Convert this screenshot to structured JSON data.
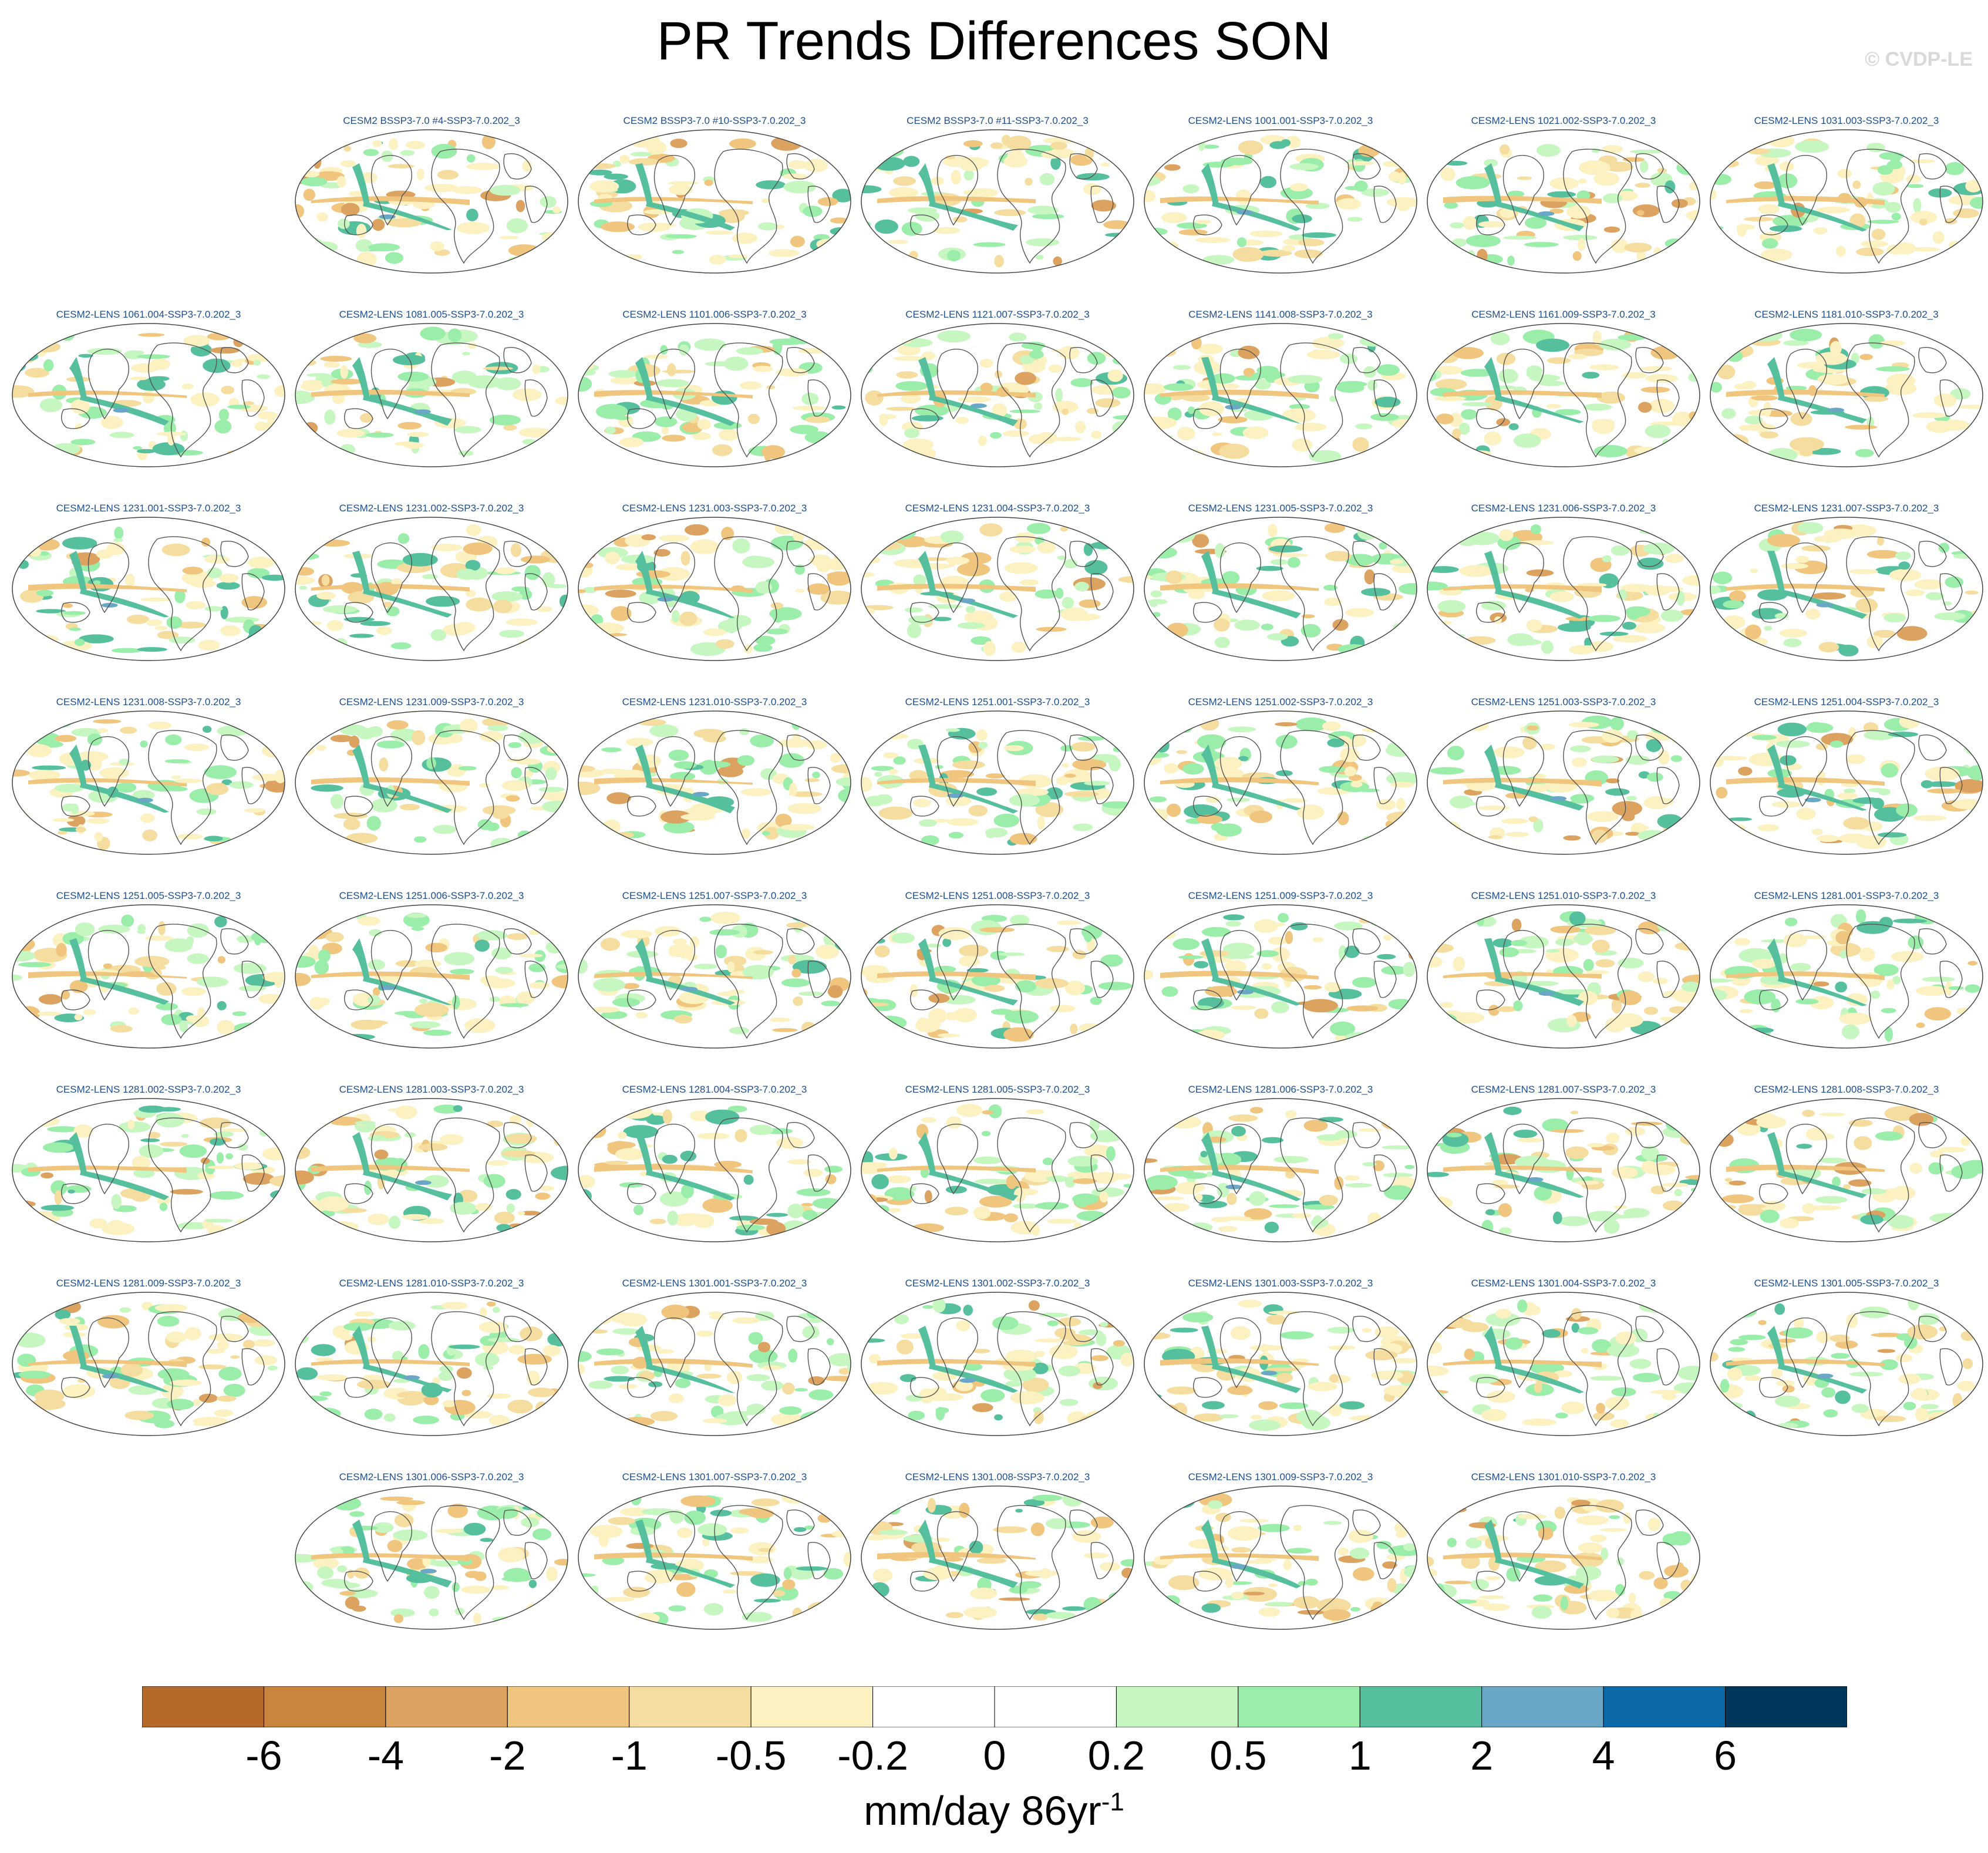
{
  "title": "PR Trends Differences SON",
  "copyright": "© CVDP-LE",
  "panels": [
    "CESM2 BSSP3-7.0 #4-SSP3-7.0.202_3",
    "CESM2 BSSP3-7.0 #10-SSP3-7.0.202_3",
    "CESM2 BSSP3-7.0 #11-SSP3-7.0.202_3",
    "CESM2-LENS 1001.001-SSP3-7.0.202_3",
    "CESM2-LENS 1021.002-SSP3-7.0.202_3",
    "CESM2-LENS 1031.003-SSP3-7.0.202_3",
    "CESM2-LENS 1061.004-SSP3-7.0.202_3",
    "CESM2-LENS 1081.005-SSP3-7.0.202_3",
    "CESM2-LENS 1101.006-SSP3-7.0.202_3",
    "CESM2-LENS 1121.007-SSP3-7.0.202_3",
    "CESM2-LENS 1141.008-SSP3-7.0.202_3",
    "CESM2-LENS 1161.009-SSP3-7.0.202_3",
    "CESM2-LENS 1181.010-SSP3-7.0.202_3",
    "CESM2-LENS 1231.001-SSP3-7.0.202_3",
    "CESM2-LENS 1231.002-SSP3-7.0.202_3",
    "CESM2-LENS 1231.003-SSP3-7.0.202_3",
    "CESM2-LENS 1231.004-SSP3-7.0.202_3",
    "CESM2-LENS 1231.005-SSP3-7.0.202_3",
    "CESM2-LENS 1231.006-SSP3-7.0.202_3",
    "CESM2-LENS 1231.007-SSP3-7.0.202_3",
    "CESM2-LENS 1231.008-SSP3-7.0.202_3",
    "CESM2-LENS 1231.009-SSP3-7.0.202_3",
    "CESM2-LENS 1231.010-SSP3-7.0.202_3",
    "CESM2-LENS 1251.001-SSP3-7.0.202_3",
    "CESM2-LENS 1251.002-SSP3-7.0.202_3",
    "CESM2-LENS 1251.003-SSP3-7.0.202_3",
    "CESM2-LENS 1251.004-SSP3-7.0.202_3",
    "CESM2-LENS 1251.005-SSP3-7.0.202_3",
    "CESM2-LENS 1251.006-SSP3-7.0.202_3",
    "CESM2-LENS 1251.007-SSP3-7.0.202_3",
    "CESM2-LENS 1251.008-SSP3-7.0.202_3",
    "CESM2-LENS 1251.009-SSP3-7.0.202_3",
    "CESM2-LENS 1251.010-SSP3-7.0.202_3",
    "CESM2-LENS 1281.001-SSP3-7.0.202_3",
    "CESM2-LENS 1281.002-SSP3-7.0.202_3",
    "CESM2-LENS 1281.003-SSP3-7.0.202_3",
    "CESM2-LENS 1281.004-SSP3-7.0.202_3",
    "CESM2-LENS 1281.005-SSP3-7.0.202_3",
    "CESM2-LENS 1281.006-SSP3-7.0.202_3",
    "CESM2-LENS 1281.007-SSP3-7.0.202_3",
    "CESM2-LENS 1281.008-SSP3-7.0.202_3",
    "CESM2-LENS 1281.009-SSP3-7.0.202_3",
    "CESM2-LENS 1281.010-SSP3-7.0.202_3",
    "CESM2-LENS 1301.001-SSP3-7.0.202_3",
    "CESM2-LENS 1301.002-SSP3-7.0.202_3",
    "CESM2-LENS 1301.003-SSP3-7.0.202_3",
    "CESM2-LENS 1301.004-SSP3-7.0.202_3",
    "CESM2-LENS 1301.005-SSP3-7.0.202_3",
    "CESM2-LENS 1301.006-SSP3-7.0.202_3",
    "CESM2-LENS 1301.007-SSP3-7.0.202_3",
    "CESM2-LENS 1301.008-SSP3-7.0.202_3",
    "CESM2-LENS 1301.009-SSP3-7.0.202_3",
    "CESM2-LENS 1301.010-SSP3-7.0.202_3"
  ],
  "colorbar": {
    "colors": [
      "#b5692a",
      "#c9843e",
      "#dba35f",
      "#f0c57e",
      "#f4dd9e",
      "#fcf1c0",
      "#ffffff",
      "#ffffff",
      "#c7f7c0",
      "#9aeeaa",
      "#55bf9e",
      "#6aa6c6",
      "#0d6aa8",
      "#003659"
    ],
    "ticks": [
      "-6",
      "-4",
      "-2",
      "-1",
      "-0.5",
      "-0.2",
      "0",
      "0.2",
      "0.5",
      "1",
      "2",
      "4",
      "6"
    ],
    "units_main": "mm/day 86yr",
    "units_sup": "-1"
  }
}
